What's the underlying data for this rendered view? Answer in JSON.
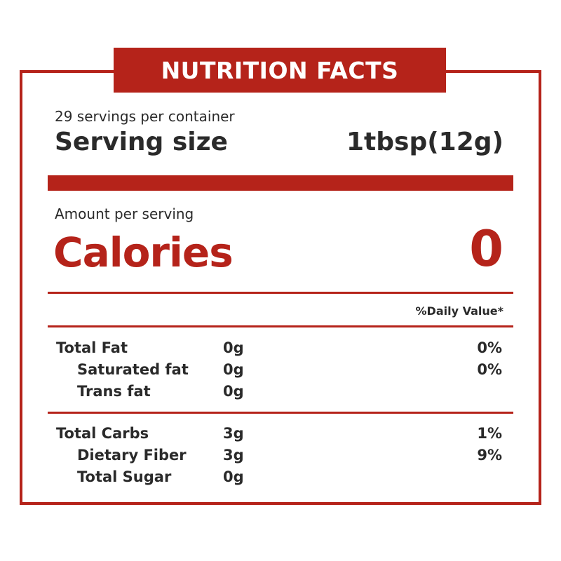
{
  "label": {
    "title": "NUTRITION FACTS",
    "servings_per_container": "29 servings per container",
    "serving_size_label": "Serving size",
    "serving_size_value": "1tbsp(12g)",
    "amount_per_serving": "Amount per serving",
    "calories_label": "Calories",
    "calories_value": "0",
    "daily_value_header": "%Daily Value*"
  },
  "nutrients": [
    {
      "name": "Total Fat",
      "amount": "0g",
      "dv": "0%"
    },
    {
      "name": "Saturated fat",
      "amount": "0g",
      "dv": "0%"
    },
    {
      "name": "Trans fat",
      "amount": "0g",
      "dv": ""
    },
    {
      "name": "Total Carbs",
      "amount": "3g",
      "dv": "1%"
    },
    {
      "name": "Dietary Fiber",
      "amount": "3g",
      "dv": "9%"
    },
    {
      "name": "Total Sugar",
      "amount": "0g",
      "dv": ""
    }
  ],
  "colors": {
    "accent": "#b5231a",
    "text": "#2a2a2a",
    "background": "#ffffff"
  }
}
